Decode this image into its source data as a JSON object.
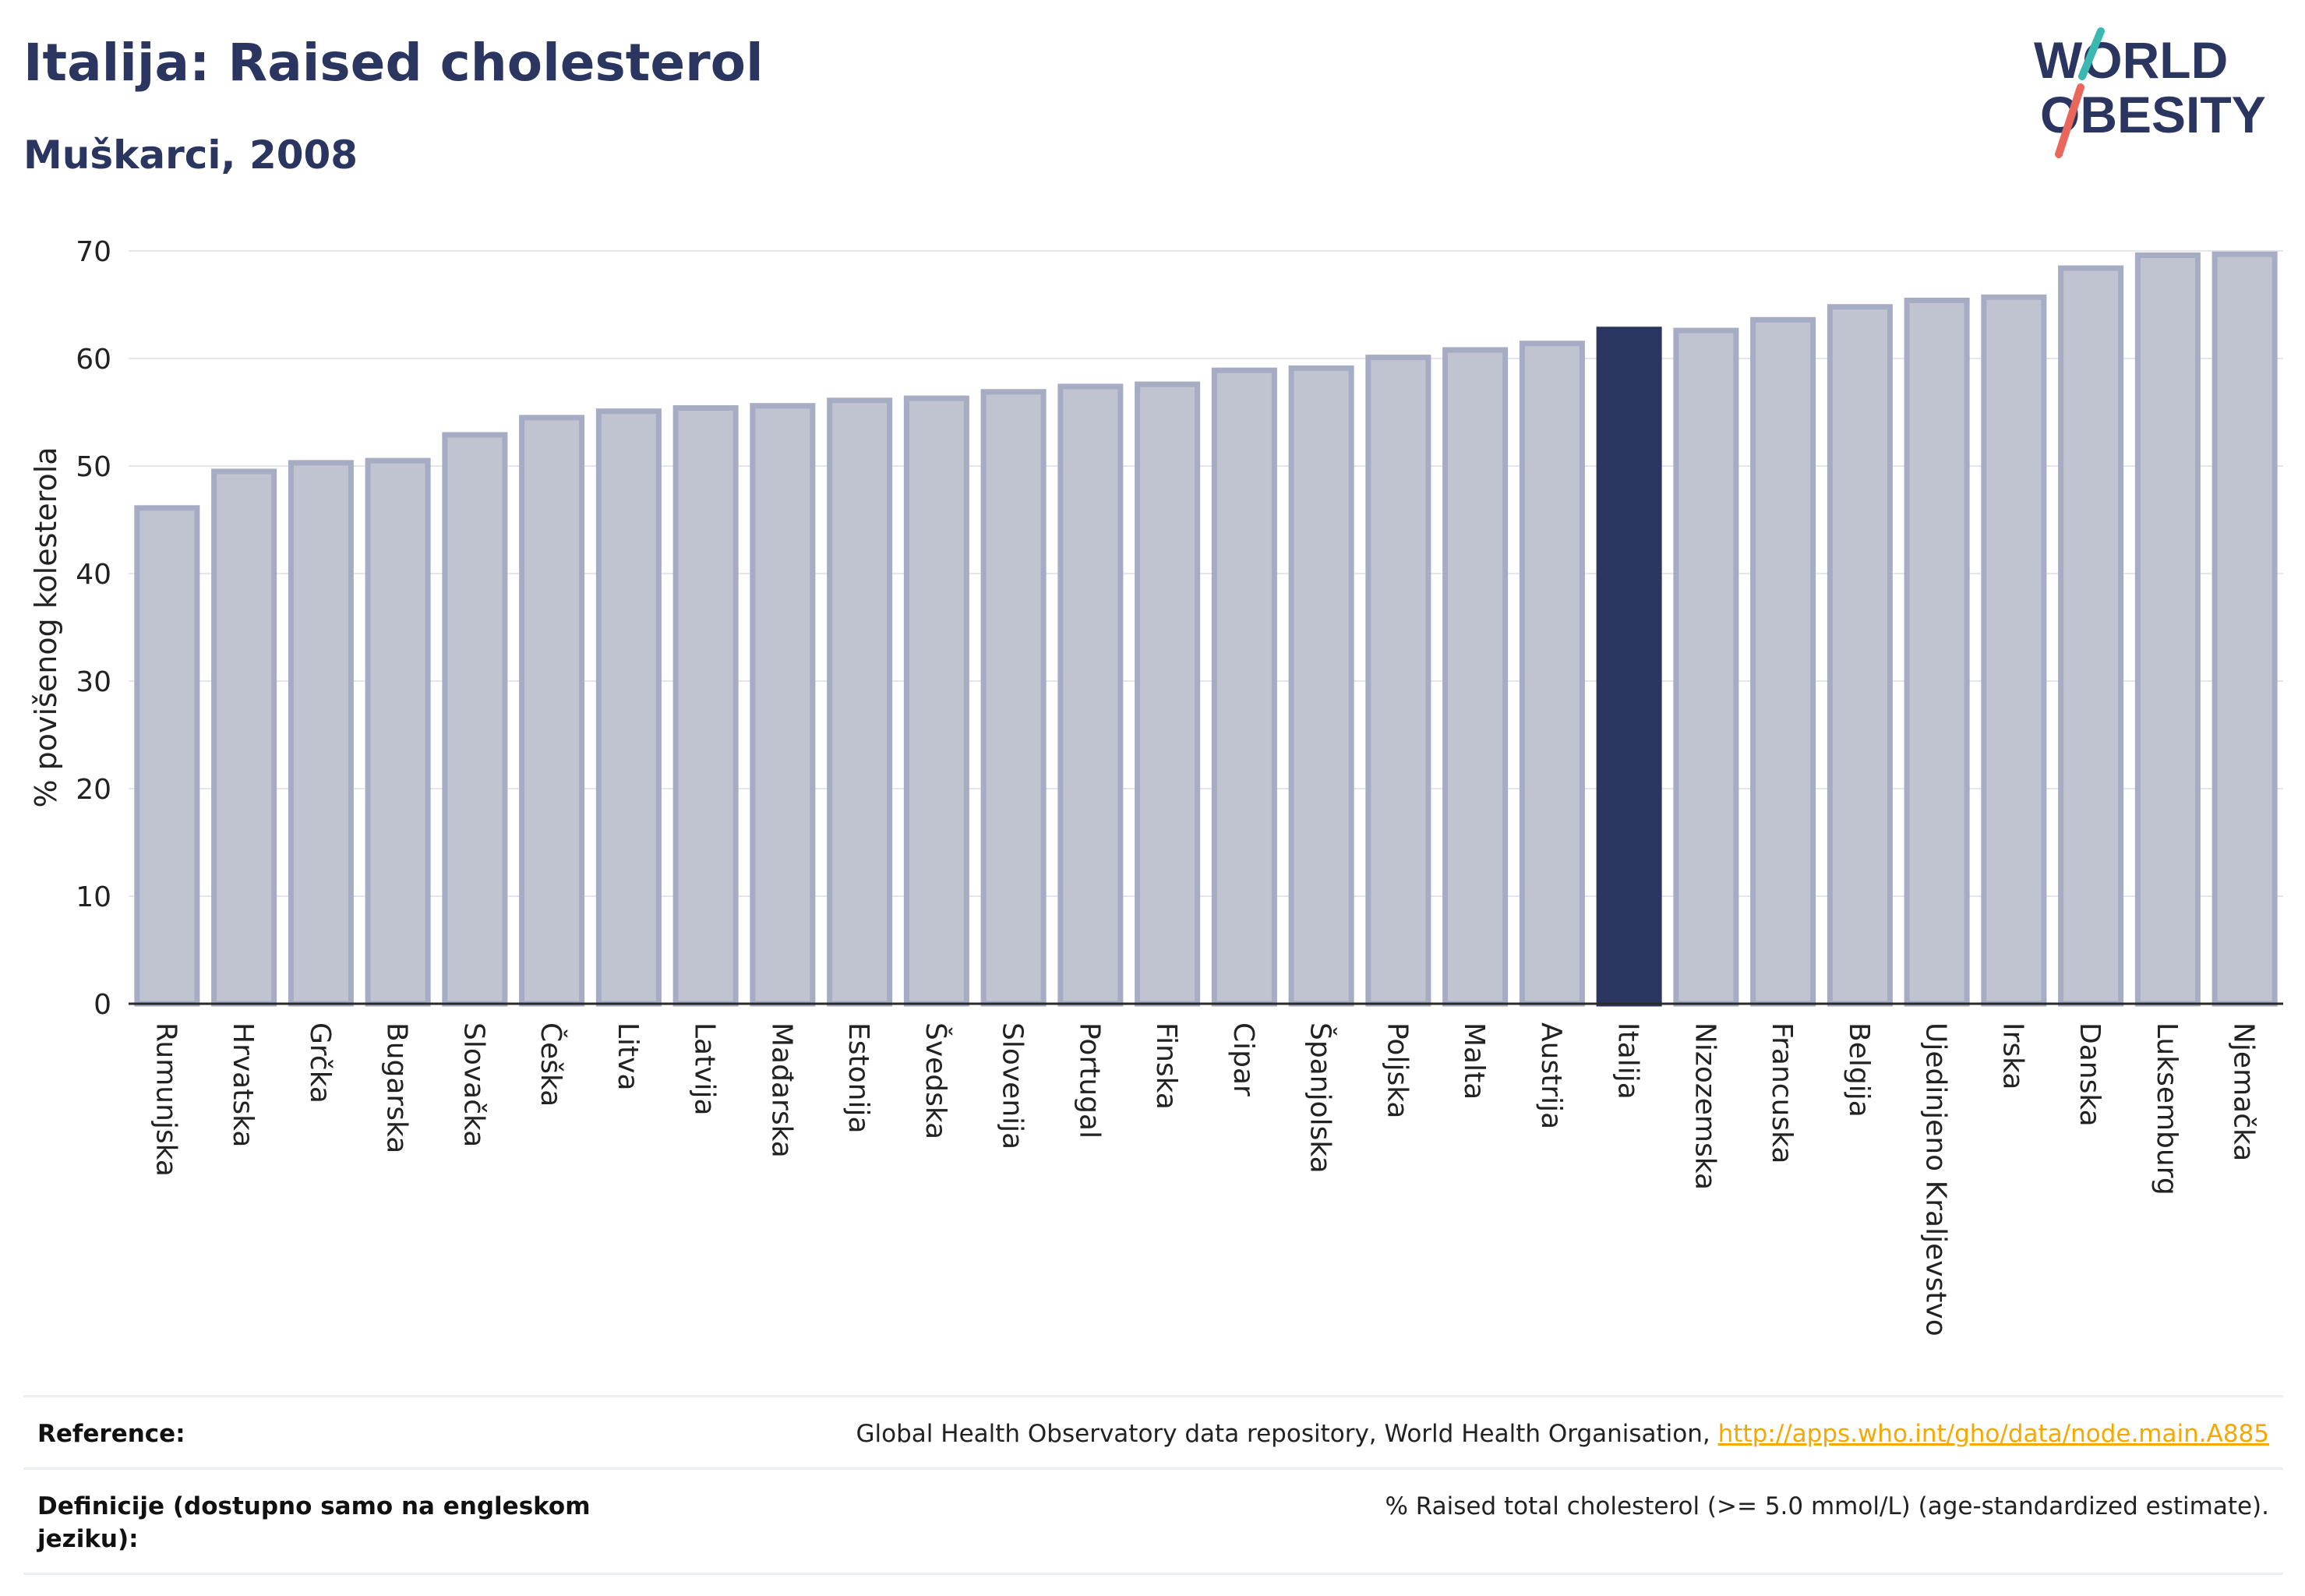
{
  "title": "Italija: Raised cholesterol",
  "subtitle": "Muškarci, 2008",
  "logo": {
    "line1": "WORLD",
    "line2": "OBESITY"
  },
  "chart_data": {
    "type": "bar",
    "ylabel": "% povišenog kolesterola",
    "ylim": [
      0,
      70
    ],
    "yticks": [
      0,
      10,
      20,
      30,
      40,
      50,
      60,
      70
    ],
    "grid": true,
    "highlight": "Italija",
    "colors": {
      "bar": "#c0c4d0",
      "bar_border": "#a6acc3",
      "highlight": "#2a3560"
    },
    "categories": [
      "Rumunjska",
      "Hrvatska",
      "Grčka",
      "Bugarska",
      "Slovačka",
      "Češka",
      "Litva",
      "Latvija",
      "Mađarska",
      "Estonija",
      "Švedska",
      "Slovenija",
      "Portugal",
      "Finska",
      "Cipar",
      "Španjolska",
      "Poljska",
      "Malta",
      "Austrija",
      "Italija",
      "Nizozemska",
      "Francuska",
      "Belgija",
      "Ujedinjeno Kraljevstvo",
      "Irska",
      "Danska",
      "Luksemburg",
      "Njemačka"
    ],
    "values": [
      46.1,
      49.5,
      50.3,
      50.5,
      52.9,
      54.5,
      55.1,
      55.4,
      55.6,
      56.1,
      56.3,
      56.9,
      57.4,
      57.6,
      58.9,
      59.1,
      60.1,
      60.8,
      61.4,
      62.7,
      62.6,
      63.6,
      64.8,
      65.4,
      65.7,
      68.4,
      69.6,
      69.7
    ]
  },
  "references": [
    {
      "label": "Reference:",
      "text": "Global Health Observatory data repository, World Health Organisation, ",
      "link": "http://apps.who.int/gho/data/node.main.A885"
    },
    {
      "label": "Definicije (dostupno samo na engleskom jeziku):",
      "text": "% Raised total cholesterol (>= 5.0 mmol/L) (age-standardized estimate)."
    }
  ]
}
